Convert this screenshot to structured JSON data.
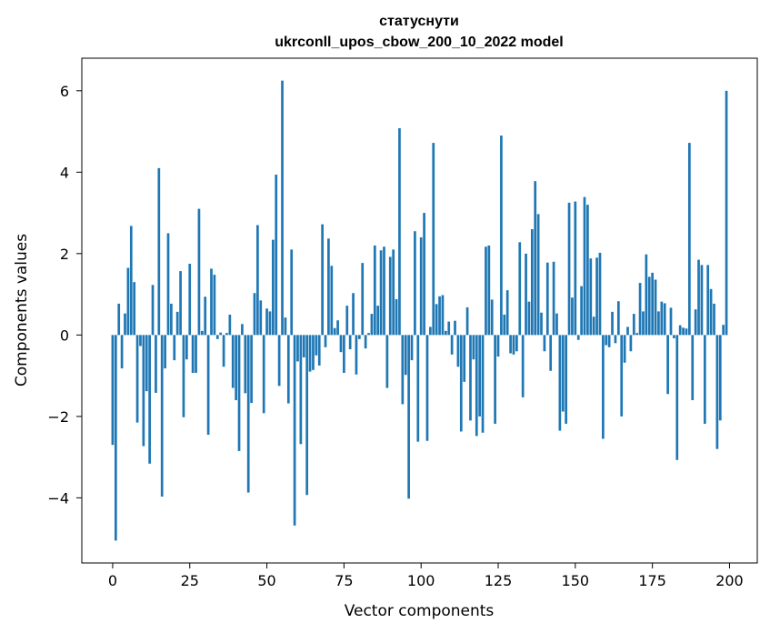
{
  "chart_data": {
    "type": "bar",
    "title_line1": "статуснути",
    "title_line2": "ukrconll_upos_cbow_200_10_2022 model",
    "xlabel": "Vector components",
    "ylabel": "Components values",
    "xlim": [
      -10,
      209
    ],
    "ylim": [
      -5.6,
      6.8
    ],
    "xticks": [
      0,
      25,
      50,
      75,
      100,
      125,
      150,
      175,
      200
    ],
    "yticks": [
      -4,
      -2,
      0,
      2,
      4,
      6
    ],
    "ytick_labels": [
      "−4",
      "−2",
      "0",
      "2",
      "4",
      "6"
    ],
    "grid": false,
    "bar_color": "#1f77b4",
    "values": [
      -2.7,
      -5.05,
      0.77,
      -0.82,
      0.53,
      1.65,
      2.68,
      1.3,
      -2.15,
      -0.27,
      -2.73,
      -1.38,
      -3.16,
      1.23,
      -1.42,
      4.1,
      -3.97,
      -0.82,
      2.5,
      0.77,
      -0.62,
      0.57,
      1.57,
      -2.02,
      -0.6,
      1.75,
      -0.93,
      -0.93,
      3.1,
      0.1,
      0.94,
      -2.45,
      1.63,
      1.48,
      -0.1,
      0.06,
      -0.78,
      0.05,
      0.5,
      -1.3,
      -1.6,
      -2.85,
      0.27,
      -1.43,
      -3.87,
      -1.67,
      1.03,
      2.7,
      0.85,
      -1.92,
      0.65,
      0.58,
      2.34,
      3.94,
      -1.25,
      6.25,
      0.43,
      -1.68,
      2.1,
      -4.68,
      -0.65,
      -2.68,
      -0.55,
      -3.93,
      -0.9,
      -0.86,
      -0.5,
      -0.75,
      2.72,
      -0.3,
      2.37,
      1.7,
      0.17,
      0.36,
      -0.42,
      -0.93,
      0.72,
      -0.35,
      1.03,
      -0.97,
      -0.1,
      1.77,
      -0.33,
      0.05,
      0.52,
      2.2,
      0.72,
      2.08,
      2.17,
      -1.3,
      1.92,
      2.1,
      0.88,
      5.08,
      -1.7,
      -0.98,
      -4.02,
      -0.62,
      2.55,
      -2.62,
      2.4,
      3.0,
      -2.6,
      0.2,
      4.72,
      0.76,
      0.95,
      0.98,
      0.1,
      0.33,
      -0.48,
      0.35,
      -0.78,
      -2.37,
      -1.15,
      0.68,
      -2.1,
      -0.6,
      -2.48,
      -2.0,
      -2.4,
      2.17,
      2.2,
      0.87,
      -2.18,
      -0.53,
      4.9,
      0.5,
      1.1,
      -0.45,
      -0.48,
      -0.4,
      2.28,
      -1.53,
      2.0,
      0.82,
      2.6,
      3.78,
      2.97,
      0.55,
      -0.4,
      1.78,
      -0.88,
      1.8,
      0.53,
      -2.35,
      -1.88,
      -2.18,
      3.25,
      0.92,
      3.28,
      -0.12,
      1.2,
      3.39,
      3.2,
      1.88,
      0.45,
      1.9,
      2.02,
      -2.55,
      -0.25,
      -0.3,
      0.57,
      -0.2,
      0.83,
      -2.0,
      -0.68,
      0.2,
      -0.4,
      0.52,
      0.05,
      1.28,
      0.58,
      1.98,
      1.43,
      1.53,
      1.36,
      0.58,
      0.82,
      0.78,
      -1.45,
      0.67,
      -0.08,
      -3.07,
      0.24,
      0.18,
      0.16,
      4.72,
      -1.6,
      0.63,
      1.85,
      1.72,
      -2.18,
      1.72,
      1.13,
      0.77,
      -2.8,
      -2.1,
      0.25,
      6.0
    ]
  }
}
